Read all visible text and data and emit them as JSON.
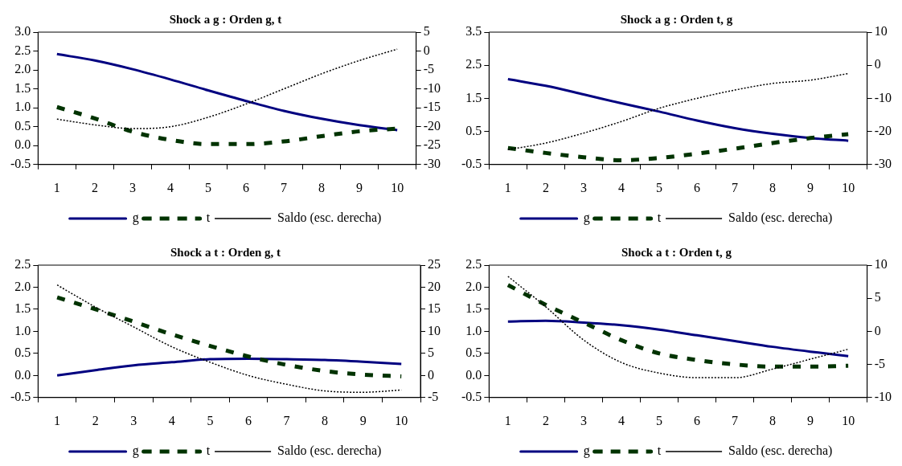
{
  "chart_data": [
    {
      "type": "line",
      "title": "Shock a g : Orden g, t",
      "categories": [
        "1",
        "2",
        "3",
        "4",
        "5",
        "6",
        "7",
        "8",
        "9",
        "10"
      ],
      "ylim": [
        -0.5,
        3.0
      ],
      "yticks": [
        {
          "value": -0.5,
          "label": "-0.5"
        },
        {
          "value": 0,
          "label": "0.0"
        },
        {
          "value": 0.5,
          "label": "0.5"
        },
        {
          "value": 1,
          "label": "1.0"
        },
        {
          "value": 1.5,
          "label": "1.5"
        },
        {
          "value": 2,
          "label": "2.0"
        },
        {
          "value": 2.5,
          "label": "2.5"
        },
        {
          "value": 3,
          "label": "3.0"
        }
      ],
      "y2lim": [
        -30,
        5
      ],
      "y2ticks": [
        -30,
        -25,
        -20,
        -15,
        -10,
        -5,
        0,
        5
      ],
      "grid": false,
      "legend": "bottom",
      "marker": "none",
      "series": [
        {
          "name": "g",
          "color": "#000080",
          "line_style": "solid",
          "values": [
            2.42,
            2.25,
            2.02,
            1.75,
            1.46,
            1.18,
            0.92,
            0.71,
            0.54,
            0.41
          ]
        },
        {
          "name": "t",
          "color": "#003300",
          "line_style": "dashed",
          "values": [
            1.02,
            0.72,
            0.37,
            0.15,
            0.04,
            0.04,
            0.11,
            0.25,
            0.38,
            0.45
          ]
        },
        {
          "name": "Saldo (esc. derecha)",
          "color": "#000000",
          "line_style": "dotted",
          "axis": "y2",
          "values": [
            -18,
            -19.5,
            -20.5,
            -20,
            -17.5,
            -14,
            -10,
            -6,
            -2.5,
            0.5
          ]
        }
      ]
    },
    {
      "type": "line",
      "title": "Shock a g : Orden t, g",
      "categories": [
        "1",
        "2",
        "3",
        "4",
        "5",
        "6",
        "7",
        "8",
        "9",
        "10"
      ],
      "ylim": [
        -0.5,
        3.5
      ],
      "yticks": [
        -0.5,
        0.5,
        1.5,
        2.5,
        3.5
      ],
      "y2lim": [
        -30,
        10
      ],
      "y2ticks": [
        -30,
        -20,
        -10,
        0,
        10
      ],
      "grid": false,
      "legend": "bottom",
      "marker": "none",
      "series": [
        {
          "name": "g",
          "color": "#000080",
          "line_style": "solid",
          "values": [
            2.08,
            1.88,
            1.62,
            1.35,
            1.1,
            0.83,
            0.6,
            0.43,
            0.3,
            0.22
          ]
        },
        {
          "name": "t",
          "color": "#003300",
          "line_style": "dashed",
          "values": [
            0.0,
            -0.15,
            -0.28,
            -0.37,
            -0.3,
            -0.17,
            -0.02,
            0.15,
            0.3,
            0.42
          ]
        },
        {
          "name": "Saldo (esc. derecha)",
          "color": "#000000",
          "line_style": "dotted",
          "axis": "y2",
          "values": [
            -25.5,
            -23.5,
            -20.5,
            -17,
            -13,
            -10,
            -7.5,
            -5.5,
            -4.5,
            -2.5
          ]
        }
      ]
    },
    {
      "type": "line",
      "title": "Shock a t : Orden g, t",
      "categories": [
        "1",
        "2",
        "3",
        "4",
        "5",
        "6",
        "7",
        "8",
        "9",
        "10"
      ],
      "ylim": [
        -0.5,
        2.5
      ],
      "yticks": [
        {
          "value": -0.5,
          "label": "-0.5"
        },
        {
          "value": 0,
          "label": "0.0"
        },
        {
          "value": 0.5,
          "label": "0.5"
        },
        {
          "value": 1,
          "label": "1.0"
        },
        {
          "value": 1.5,
          "label": "1.5"
        },
        {
          "value": 2,
          "label": "2.0"
        },
        {
          "value": 2.5,
          "label": "2.5"
        }
      ],
      "y2lim": [
        -5,
        25
      ],
      "y2ticks": [
        -5,
        0,
        5,
        10,
        15,
        20,
        25
      ],
      "grid": false,
      "legend": "bottom",
      "marker": "none",
      "series": [
        {
          "name": "g",
          "color": "#000080",
          "line_style": "solid",
          "values": [
            0.0,
            0.12,
            0.23,
            0.3,
            0.37,
            0.38,
            0.37,
            0.35,
            0.31,
            0.26
          ]
        },
        {
          "name": "t",
          "color": "#003300",
          "line_style": "dashed",
          "values": [
            1.77,
            1.5,
            1.22,
            0.93,
            0.67,
            0.43,
            0.24,
            0.1,
            0.02,
            -0.02
          ]
        },
        {
          "name": "Saldo (esc. derecha)",
          "color": "#000000",
          "line_style": "dotted",
          "axis": "y2",
          "values": [
            20.5,
            15.5,
            11,
            6.5,
            3,
            0,
            -2,
            -3.5,
            -3.8,
            -3.3
          ]
        }
      ]
    },
    {
      "type": "line",
      "title": "Shock a t : Orden t, g",
      "categories": [
        "1",
        "2",
        "3",
        "4",
        "5",
        "6",
        "7",
        "8",
        "9",
        "10"
      ],
      "ylim": [
        -0.5,
        2.5
      ],
      "yticks": [
        {
          "value": -0.5,
          "label": "-0.5"
        },
        {
          "value": 0,
          "label": "0.0"
        },
        {
          "value": 0.5,
          "label": "0.5"
        },
        {
          "value": 1,
          "label": "1.0"
        },
        {
          "value": 1.5,
          "label": "1.5"
        },
        {
          "value": 2,
          "label": "2.0"
        },
        {
          "value": 2.5,
          "label": "2.5"
        }
      ],
      "y2lim": [
        -10,
        10
      ],
      "y2ticks": [
        -10,
        -5,
        0,
        5,
        10
      ],
      "grid": false,
      "legend": "bottom",
      "marker": "none",
      "series": [
        {
          "name": "g",
          "color": "#000080",
          "line_style": "solid",
          "values": [
            1.22,
            1.24,
            1.2,
            1.14,
            1.04,
            0.91,
            0.78,
            0.65,
            0.54,
            0.44
          ]
        },
        {
          "name": "t",
          "color": "#003300",
          "line_style": "dashed",
          "values": [
            2.05,
            1.6,
            1.2,
            0.8,
            0.5,
            0.35,
            0.25,
            0.2,
            0.2,
            0.22
          ]
        },
        {
          "name": "Saldo (esc. derecha)",
          "color": "#000000",
          "line_style": "dotted",
          "axis": "y2",
          "values": [
            8.3,
            3.7,
            -1.3,
            -4.7,
            -6.3,
            -7,
            -7,
            -5.7,
            -4.2,
            -2.7
          ]
        }
      ]
    }
  ]
}
